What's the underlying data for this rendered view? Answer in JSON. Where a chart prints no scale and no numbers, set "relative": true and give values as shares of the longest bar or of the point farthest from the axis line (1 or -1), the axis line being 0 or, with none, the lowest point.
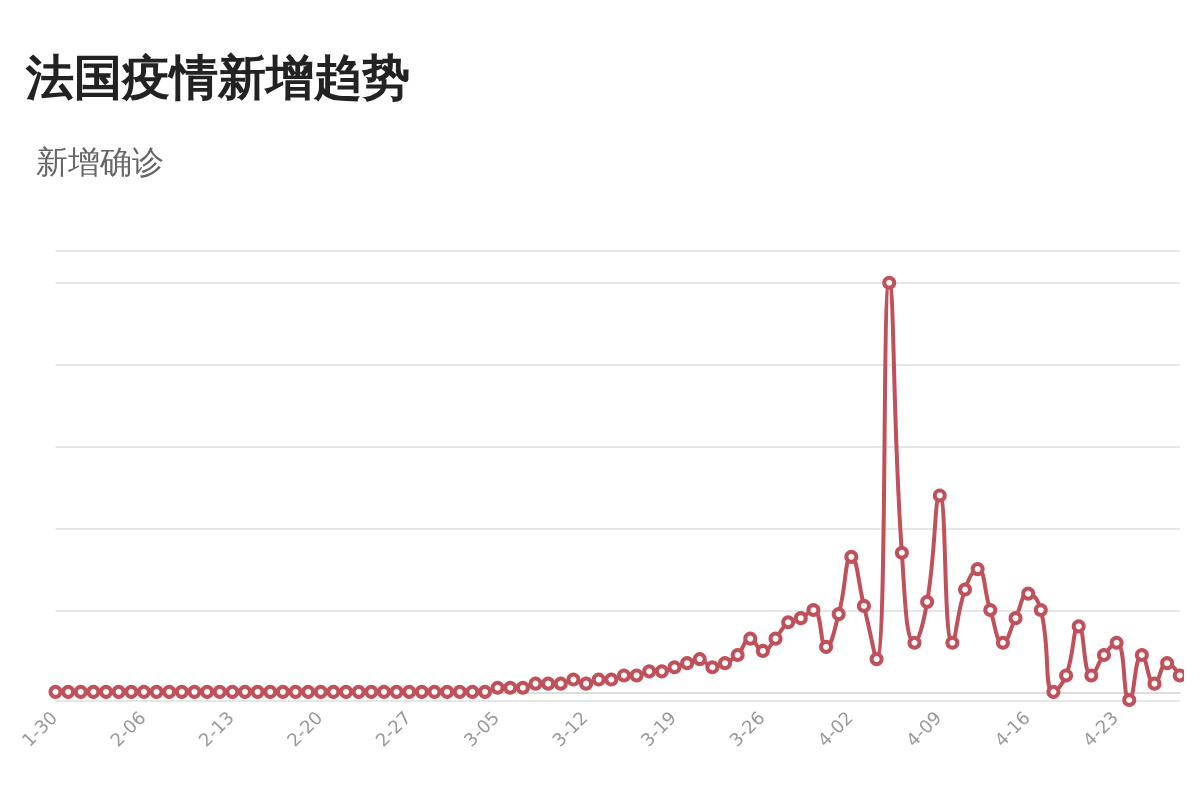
{
  "chart_data": {
    "type": "line",
    "title": "法国疫情新增趋势",
    "relative": true,
    "legend": "top left",
    "grid": "y",
    "marker": "circle",
    "line_style": "solid",
    "categories": [
      "1-30",
      null,
      null,
      null,
      null,
      null,
      null,
      "2-06",
      null,
      null,
      null,
      null,
      null,
      null,
      "2-13",
      null,
      null,
      null,
      null,
      null,
      null,
      "2-20",
      null,
      null,
      null,
      null,
      null,
      null,
      "2-27",
      null,
      null,
      null,
      null,
      null,
      null,
      "3-05",
      null,
      null,
      null,
      null,
      null,
      null,
      "3-12",
      null,
      null,
      null,
      null,
      null,
      null,
      "3-19",
      null,
      null,
      null,
      null,
      null,
      null,
      "3-26",
      null,
      null,
      null,
      null,
      null,
      null,
      "4-02",
      null,
      null,
      null,
      null,
      null,
      null,
      "4-09",
      null,
      null,
      null,
      null,
      null,
      null,
      "4-16",
      null,
      null,
      null,
      null,
      null,
      null,
      "4-23",
      null,
      null,
      null,
      null,
      null
    ],
    "series": [
      {
        "name": "新增确诊",
        "color": "#c0505a",
        "values": [
          0,
          0,
          0,
          0,
          0,
          0,
          0,
          0,
          0,
          0,
          0,
          0,
          0,
          0,
          0,
          0,
          0,
          0,
          0,
          0,
          0,
          0,
          0,
          0,
          0,
          0,
          0,
          0,
          0,
          0,
          0,
          0,
          0,
          0,
          0,
          0.01,
          0.01,
          0.01,
          0.02,
          0.02,
          0.02,
          0.03,
          0.02,
          0.03,
          0.03,
          0.04,
          0.04,
          0.05,
          0.05,
          0.06,
          0.07,
          0.08,
          0.06,
          0.07,
          0.09,
          0.13,
          0.1,
          0.13,
          0.17,
          0.18,
          0.2,
          0.11,
          0.19,
          0.33,
          0.21,
          0.08,
          1,
          0.34,
          0.12,
          0.22,
          0.48,
          0.12,
          0.25,
          0.3,
          0.2,
          0.12,
          0.18,
          0.24,
          0.2,
          0,
          0.04,
          0.16,
          0.04,
          0.09,
          0.12,
          -0.02,
          0.09,
          0.02,
          0.07,
          0.04
        ]
      }
    ]
  }
}
